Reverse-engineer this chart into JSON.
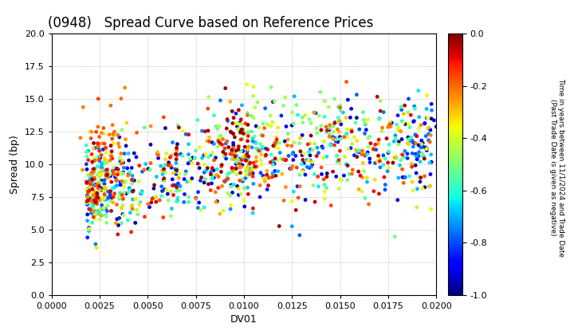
{
  "title": "(0948)   Spread Curve based on Reference Prices",
  "xlabel": "DV01",
  "ylabel": "Spread (bp)",
  "xlim": [
    0.0,
    0.02
  ],
  "ylim": [
    0.0,
    20.0
  ],
  "xticks": [
    0.0,
    0.0025,
    0.005,
    0.0075,
    0.01,
    0.0125,
    0.015,
    0.0175,
    0.02
  ],
  "yticks": [
    0.0,
    2.5,
    5.0,
    7.5,
    10.0,
    12.5,
    15.0,
    17.5,
    20.0
  ],
  "colorbar_label_line1": "Time in years between 11/1/2024 and Trade Date",
  "colorbar_label_line2": "(Past Trade Date is given as negative)",
  "colorbar_ticks": [
    0.0,
    -0.2,
    -0.4,
    -0.6,
    -0.8,
    -1.0
  ],
  "cmap": "jet",
  "vmin": -1.0,
  "vmax": 0.0,
  "marker_size": 12,
  "background_color": "#ffffff",
  "grid_color": "#bbbbbb",
  "title_fontsize": 12,
  "axis_fontsize": 9,
  "tick_fontsize": 8,
  "seed": 12345
}
